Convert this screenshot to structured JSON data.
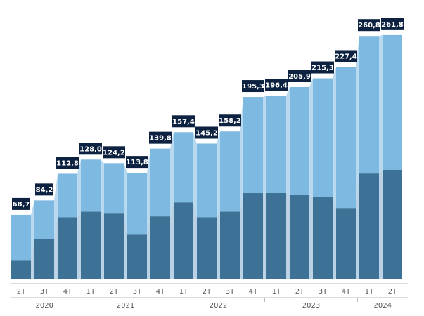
{
  "chart_data": {
    "type": "bar",
    "stacked": true,
    "categories": [
      "2T",
      "3T",
      "4T",
      "1T",
      "2T",
      "3T",
      "4T",
      "1T",
      "2T",
      "3T",
      "4T",
      "1T",
      "2T",
      "3T",
      "4T",
      "1T",
      "2T"
    ],
    "years": [
      {
        "label": "2020",
        "quarters": 3
      },
      {
        "label": "2021",
        "quarters": 4
      },
      {
        "label": "2022",
        "quarters": 4
      },
      {
        "label": "2023",
        "quarters": 4
      },
      {
        "label": "2024",
        "quarters": 2
      }
    ],
    "totals": [
      68.7,
      84.2,
      112.8,
      128.0,
      124.2,
      113.8,
      139.8,
      157.4,
      145.2,
      158.2,
      195.3,
      196.4,
      205.9,
      215.3,
      227.4,
      260.8,
      261.8
    ],
    "total_labels": [
      "68,7",
      "84,2",
      "112,8",
      "128,0",
      "124,2",
      "113,8",
      "139,8",
      "157,4",
      "145,2",
      "158,2",
      "195,3",
      "196,4",
      "205,9",
      "215,3",
      "227,4",
      "260,8",
      "261,8"
    ],
    "series": [
      {
        "values": [
          20,
          43,
          66,
          72,
          70,
          48,
          67,
          82,
          66,
          72,
          92,
          92,
          90,
          88,
          76,
          113,
          117
        ],
        "color": "#3d7296"
      },
      {
        "values": [
          48.7,
          41.2,
          46.8,
          56.0,
          54.2,
          65.8,
          72.8,
          75.4,
          79.2,
          86.2,
          103.3,
          104.4,
          115.9,
          127.3,
          151.4,
          147.8,
          144.8
        ],
        "color": "#7db9e0"
      }
    ],
    "ylim": [
      0,
      270
    ],
    "grid": false,
    "legend": "none",
    "label_bg_color": "#0d2240",
    "connector_color": "#bcd9ef"
  }
}
